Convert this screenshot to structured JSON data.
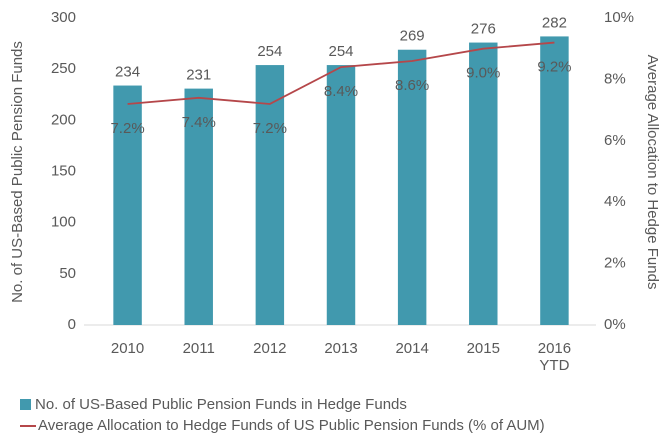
{
  "chart_data": {
    "type": "bar",
    "categories": [
      "2010",
      "2011",
      "2012",
      "2013",
      "2014",
      "2015",
      "2016 YTD"
    ],
    "series": [
      {
        "name": "No. of US-Based Public Pension Funds in Hedge Funds",
        "type": "bar",
        "color": "#4199ae",
        "values": [
          234,
          231,
          254,
          254,
          269,
          276,
          282
        ]
      },
      {
        "name": "Average Allocation to Hedge Funds of US Public Pension Funds (% of AUM)",
        "type": "line",
        "axis": "y2",
        "color": "#b5474a",
        "values": [
          7.2,
          7.4,
          7.2,
          8.4,
          8.6,
          9.0,
          9.2
        ],
        "value_labels": [
          "7.2%",
          "7.4%",
          "7.2%",
          "8.4%",
          "8.6%",
          "9.0%",
          "9.2%"
        ]
      }
    ],
    "ylabel": "No. of US-Based Public Pension Funds",
    "y2label": "Average Allocation to Hedge Funds",
    "ylim": [
      0,
      300
    ],
    "yticks": [
      0,
      50,
      100,
      150,
      200,
      250,
      300
    ],
    "y2lim": [
      0,
      10
    ],
    "y2ticks": [
      {
        "value": 0,
        "label": "0%"
      },
      {
        "value": 2,
        "label": "2%"
      },
      {
        "value": 4,
        "label": "4%"
      },
      {
        "value": 6,
        "label": "6%"
      },
      {
        "value": 8,
        "label": "8%"
      },
      {
        "value": 10,
        "label": "10%"
      }
    ],
    "grid": false,
    "legend": "bottom"
  }
}
